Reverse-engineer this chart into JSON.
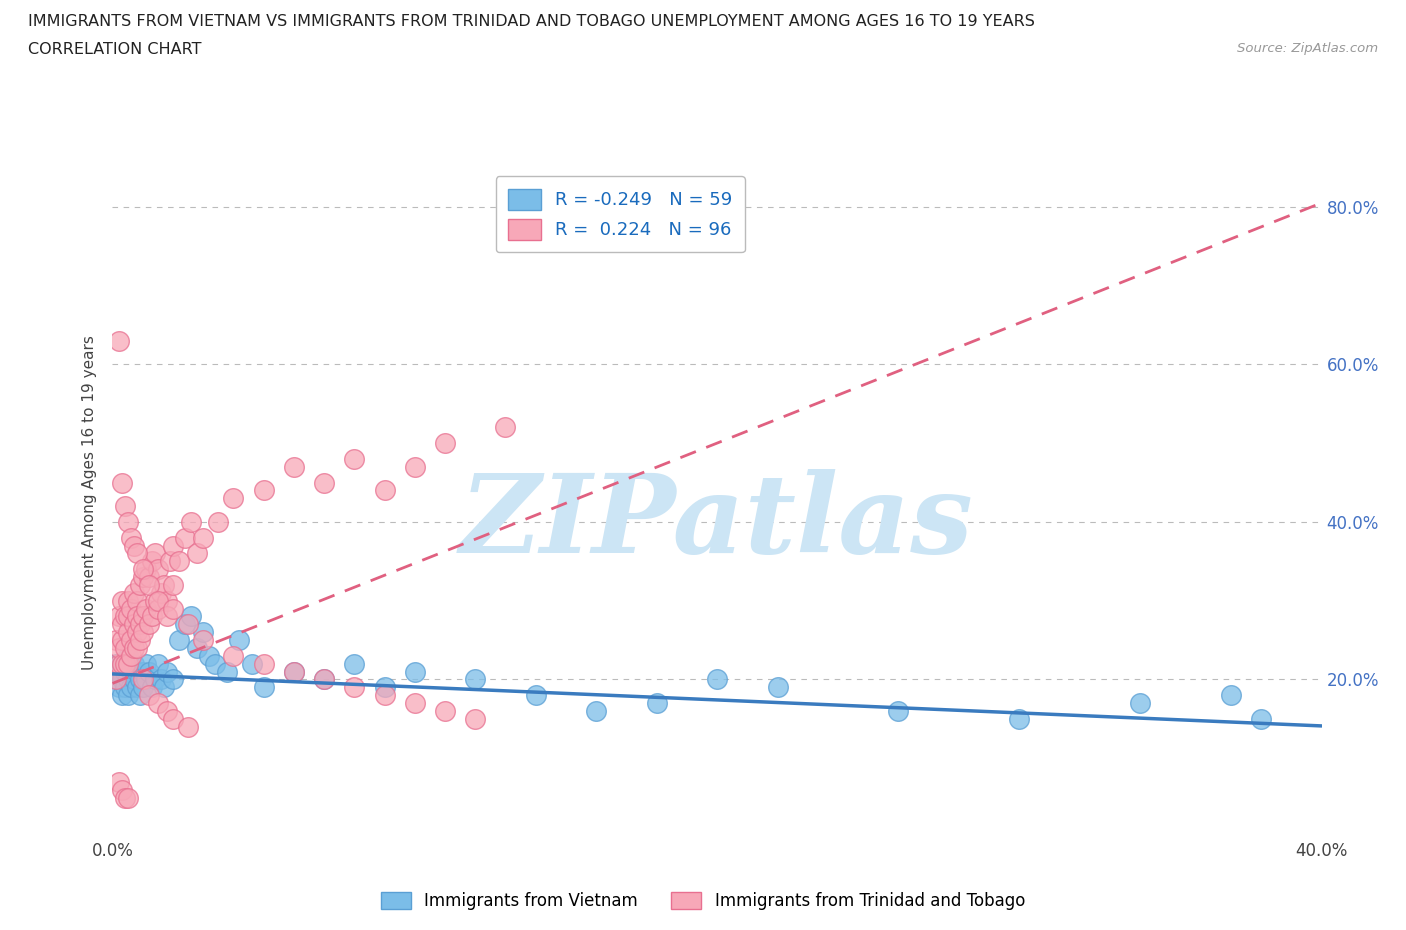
{
  "title_line1": "IMMIGRANTS FROM VIETNAM VS IMMIGRANTS FROM TRINIDAD AND TOBAGO UNEMPLOYMENT AMONG AGES 16 TO 19 YEARS",
  "title_line2": "CORRELATION CHART",
  "source": "Source: ZipAtlas.com",
  "ylabel": "Unemployment Among Ages 16 to 19 years",
  "xlim": [
    0.0,
    0.4
  ],
  "ylim": [
    0.0,
    0.85
  ],
  "xticks": [
    0.0,
    0.1,
    0.2,
    0.3,
    0.4
  ],
  "yticks": [
    0.0,
    0.2,
    0.4,
    0.6,
    0.8
  ],
  "series1_name": "Immigrants from Vietnam",
  "series1_color": "#7bbde8",
  "series1_edge": "#5a9fd4",
  "series1_line_color": "#3a7bbf",
  "series2_name": "Immigrants from Trinidad and Tobago",
  "series2_color": "#f7a8b8",
  "series2_edge": "#e87090",
  "series2_line_color": "#e06080",
  "watermark": "ZIPatlas",
  "watermark_color": "#cce5f5",
  "background_color": "#ffffff",
  "grid_color": "#bbbbbb",
  "tick_color": "#4472c4",
  "legend_R_color": "#1a6bbd",
  "vietnam_trend": [
    0.207,
    -0.165
  ],
  "tt_trend": [
    0.195,
    1.525
  ],
  "vietnam_x": [
    0.001,
    0.001,
    0.002,
    0.002,
    0.003,
    0.003,
    0.003,
    0.004,
    0.004,
    0.005,
    0.005,
    0.005,
    0.006,
    0.006,
    0.007,
    0.007,
    0.008,
    0.008,
    0.009,
    0.009,
    0.01,
    0.01,
    0.011,
    0.011,
    0.012,
    0.013,
    0.014,
    0.015,
    0.016,
    0.017,
    0.018,
    0.02,
    0.022,
    0.024,
    0.026,
    0.028,
    0.03,
    0.032,
    0.034,
    0.038,
    0.042,
    0.046,
    0.05,
    0.06,
    0.07,
    0.08,
    0.09,
    0.1,
    0.12,
    0.14,
    0.16,
    0.18,
    0.2,
    0.22,
    0.26,
    0.3,
    0.34,
    0.37,
    0.38
  ],
  "vietnam_y": [
    0.2,
    0.22,
    0.19,
    0.21,
    0.2,
    0.18,
    0.22,
    0.19,
    0.21,
    0.2,
    0.23,
    0.18,
    0.21,
    0.19,
    0.2,
    0.22,
    0.19,
    0.21,
    0.2,
    0.18,
    0.21,
    0.19,
    0.22,
    0.2,
    0.21,
    0.19,
    0.2,
    0.22,
    0.2,
    0.19,
    0.21,
    0.2,
    0.25,
    0.27,
    0.28,
    0.24,
    0.26,
    0.23,
    0.22,
    0.21,
    0.25,
    0.22,
    0.19,
    0.21,
    0.2,
    0.22,
    0.19,
    0.21,
    0.2,
    0.18,
    0.16,
    0.17,
    0.2,
    0.19,
    0.16,
    0.15,
    0.17,
    0.18,
    0.15
  ],
  "tt_x": [
    0.001,
    0.001,
    0.002,
    0.002,
    0.002,
    0.003,
    0.003,
    0.003,
    0.003,
    0.004,
    0.004,
    0.004,
    0.005,
    0.005,
    0.005,
    0.005,
    0.006,
    0.006,
    0.006,
    0.007,
    0.007,
    0.007,
    0.008,
    0.008,
    0.008,
    0.008,
    0.009,
    0.009,
    0.009,
    0.01,
    0.01,
    0.01,
    0.011,
    0.011,
    0.012,
    0.012,
    0.013,
    0.013,
    0.014,
    0.014,
    0.015,
    0.015,
    0.016,
    0.017,
    0.018,
    0.019,
    0.02,
    0.02,
    0.022,
    0.024,
    0.026,
    0.028,
    0.03,
    0.035,
    0.04,
    0.05,
    0.06,
    0.07,
    0.08,
    0.09,
    0.1,
    0.11,
    0.13,
    0.002,
    0.003,
    0.004,
    0.005,
    0.006,
    0.007,
    0.008,
    0.01,
    0.012,
    0.015,
    0.018,
    0.02,
    0.025,
    0.03,
    0.04,
    0.05,
    0.06,
    0.07,
    0.08,
    0.09,
    0.1,
    0.11,
    0.12,
    0.01,
    0.012,
    0.015,
    0.018,
    0.02,
    0.025,
    0.002,
    0.003,
    0.004,
    0.005
  ],
  "tt_y": [
    0.2,
    0.25,
    0.22,
    0.28,
    0.24,
    0.25,
    0.3,
    0.22,
    0.27,
    0.24,
    0.28,
    0.22,
    0.26,
    0.3,
    0.22,
    0.28,
    0.25,
    0.29,
    0.23,
    0.27,
    0.31,
    0.24,
    0.26,
    0.3,
    0.24,
    0.28,
    0.27,
    0.32,
    0.25,
    0.28,
    0.33,
    0.26,
    0.29,
    0.34,
    0.27,
    0.33,
    0.28,
    0.35,
    0.3,
    0.36,
    0.29,
    0.34,
    0.31,
    0.32,
    0.3,
    0.35,
    0.32,
    0.37,
    0.35,
    0.38,
    0.4,
    0.36,
    0.38,
    0.4,
    0.43,
    0.44,
    0.47,
    0.45,
    0.48,
    0.44,
    0.47,
    0.5,
    0.52,
    0.63,
    0.45,
    0.42,
    0.4,
    0.38,
    0.37,
    0.36,
    0.34,
    0.32,
    0.3,
    0.28,
    0.29,
    0.27,
    0.25,
    0.23,
    0.22,
    0.21,
    0.2,
    0.19,
    0.18,
    0.17,
    0.16,
    0.15,
    0.2,
    0.18,
    0.17,
    0.16,
    0.15,
    0.14,
    0.07,
    0.06,
    0.05,
    0.05
  ]
}
